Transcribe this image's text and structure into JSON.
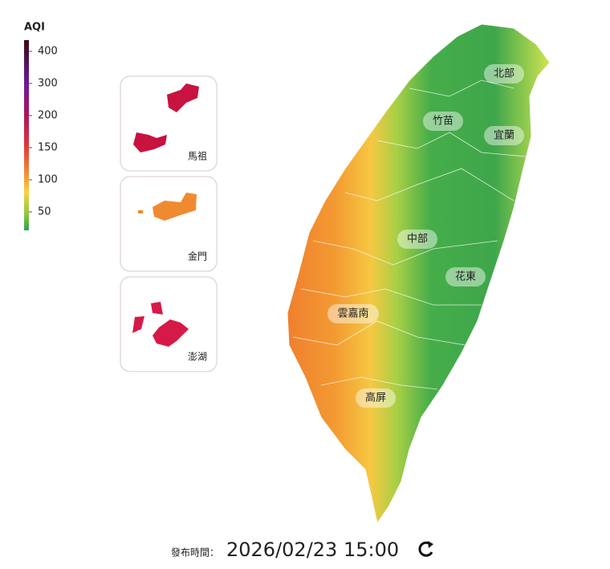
{
  "legend": {
    "title": "AQI",
    "ticks": [
      400,
      300,
      200,
      150,
      100,
      50
    ]
  },
  "insets": [
    {
      "label": "馬祖"
    },
    {
      "label": "金門"
    },
    {
      "label": "澎湖"
    }
  ],
  "regions": [
    {
      "label": "北部"
    },
    {
      "label": "竹苗"
    },
    {
      "label": "宜蘭"
    },
    {
      "label": "中部"
    },
    {
      "label": "花東"
    },
    {
      "label": "雲嘉南"
    },
    {
      "label": "高屏"
    }
  ],
  "footer": {
    "label": "發布時間：",
    "time": "2026/02/23 15:00"
  }
}
